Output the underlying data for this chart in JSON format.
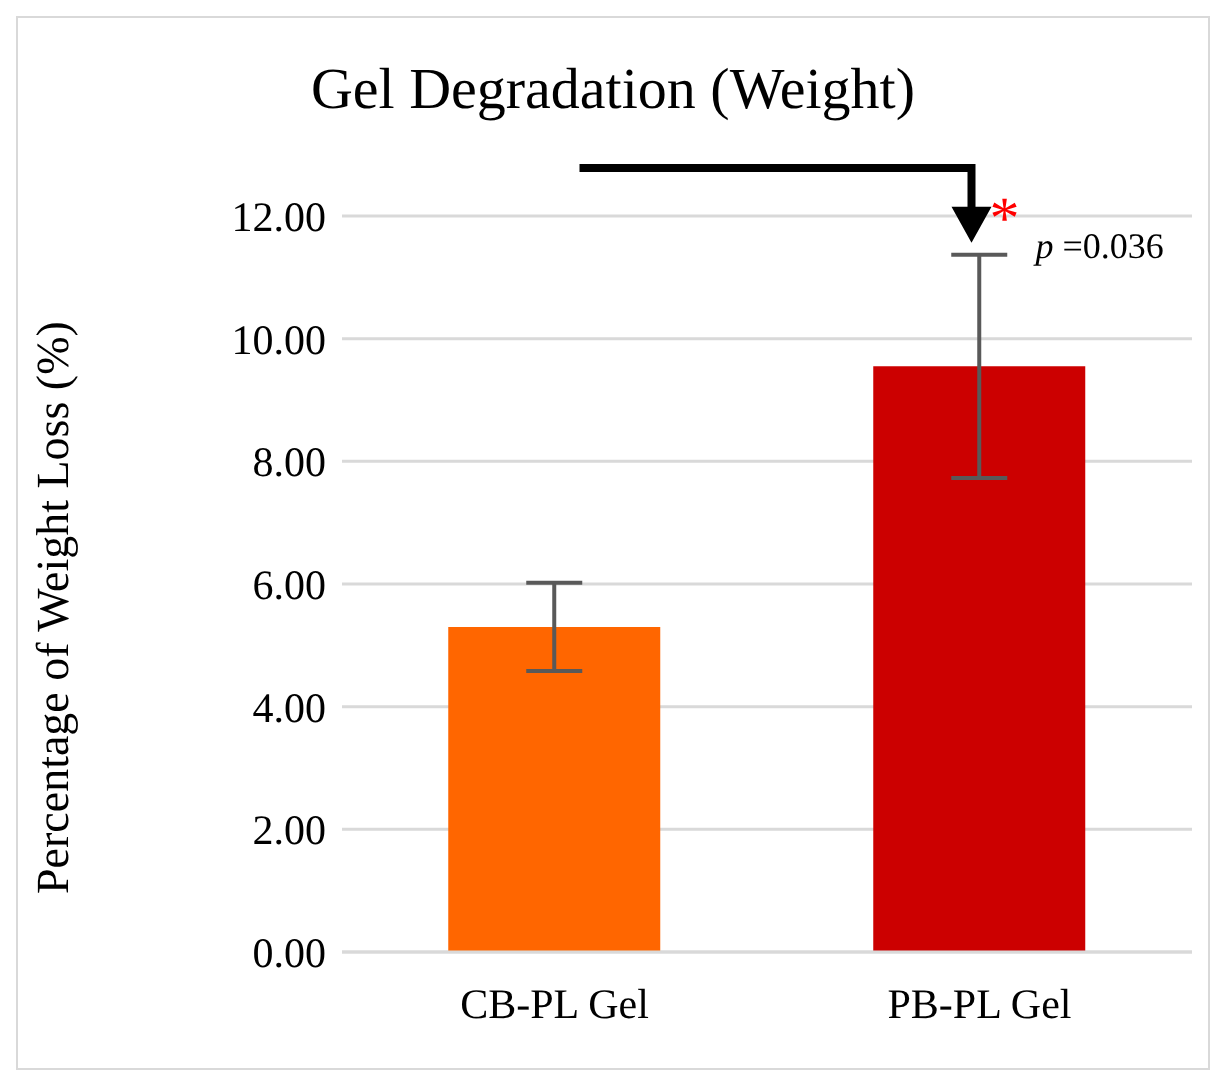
{
  "chart_data": {
    "type": "bar",
    "title": "Gel Degradation (Weight)",
    "ylabel": "Percentage of Weight Loss (%)",
    "categories": [
      "CB-PL Gel",
      "PB-PL Gel"
    ],
    "values": [
      5.3,
      9.55
    ],
    "colors": [
      "#ff6600",
      "#cc0000"
    ],
    "errors": [
      0.72,
      1.82
    ],
    "ylim": [
      0,
      12
    ],
    "yticks": [
      {
        "value": 0,
        "label": "0.00"
      },
      {
        "value": 2,
        "label": "2.00"
      },
      {
        "value": 4,
        "label": "4.00"
      },
      {
        "value": 6,
        "label": "6.00"
      },
      {
        "value": 8,
        "label": "8.00"
      },
      {
        "value": 10,
        "label": "10.00"
      },
      {
        "value": 12,
        "label": "12.00"
      }
    ],
    "grid": "y",
    "annotations": [
      {
        "text": "*",
        "x": "PB-PL Gel",
        "y": 11.37
      },
      {
        "text": "p =0.036",
        "x": "PB-PL Gel",
        "y": 11.37
      }
    ]
  }
}
